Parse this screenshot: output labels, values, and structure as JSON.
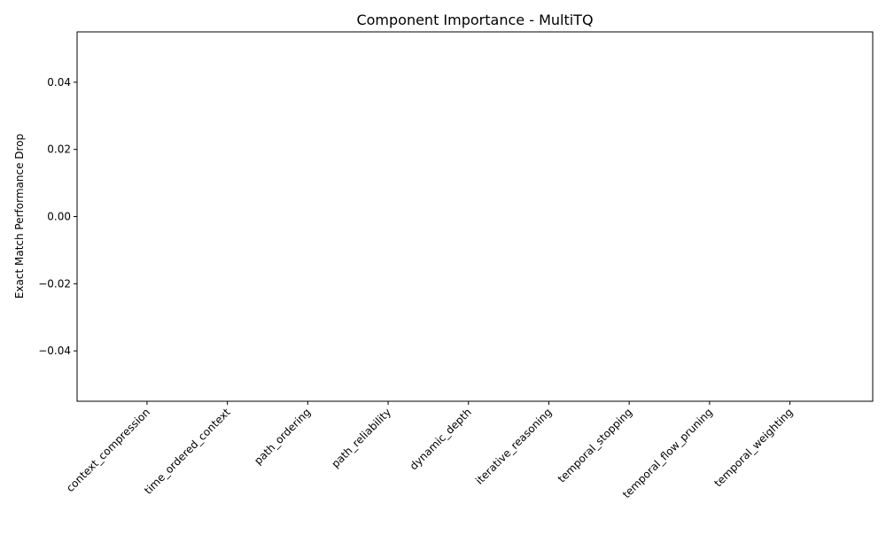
{
  "chart_data": {
    "type": "bar",
    "title": "Component Importance - MultiTQ",
    "xlabel": "",
    "ylabel": "Exact Match Performance Drop",
    "categories": [
      "context_compression",
      "time_ordered_context",
      "path_ordering",
      "path_reliability",
      "dynamic_depth",
      "iterative_reasoning",
      "temporal_stopping",
      "temporal_flow_pruning",
      "temporal_weighting"
    ],
    "values": [
      0,
      0,
      0,
      0,
      0,
      0,
      0,
      0,
      0
    ],
    "ylim": [
      -0.055,
      0.055
    ],
    "yticks": [
      -0.04,
      -0.02,
      0.0,
      0.02,
      0.04
    ],
    "ytick_labels": [
      "−0.04",
      "−0.02",
      "0.00",
      "0.02",
      "0.04"
    ],
    "grid": false,
    "legend": "none"
  }
}
